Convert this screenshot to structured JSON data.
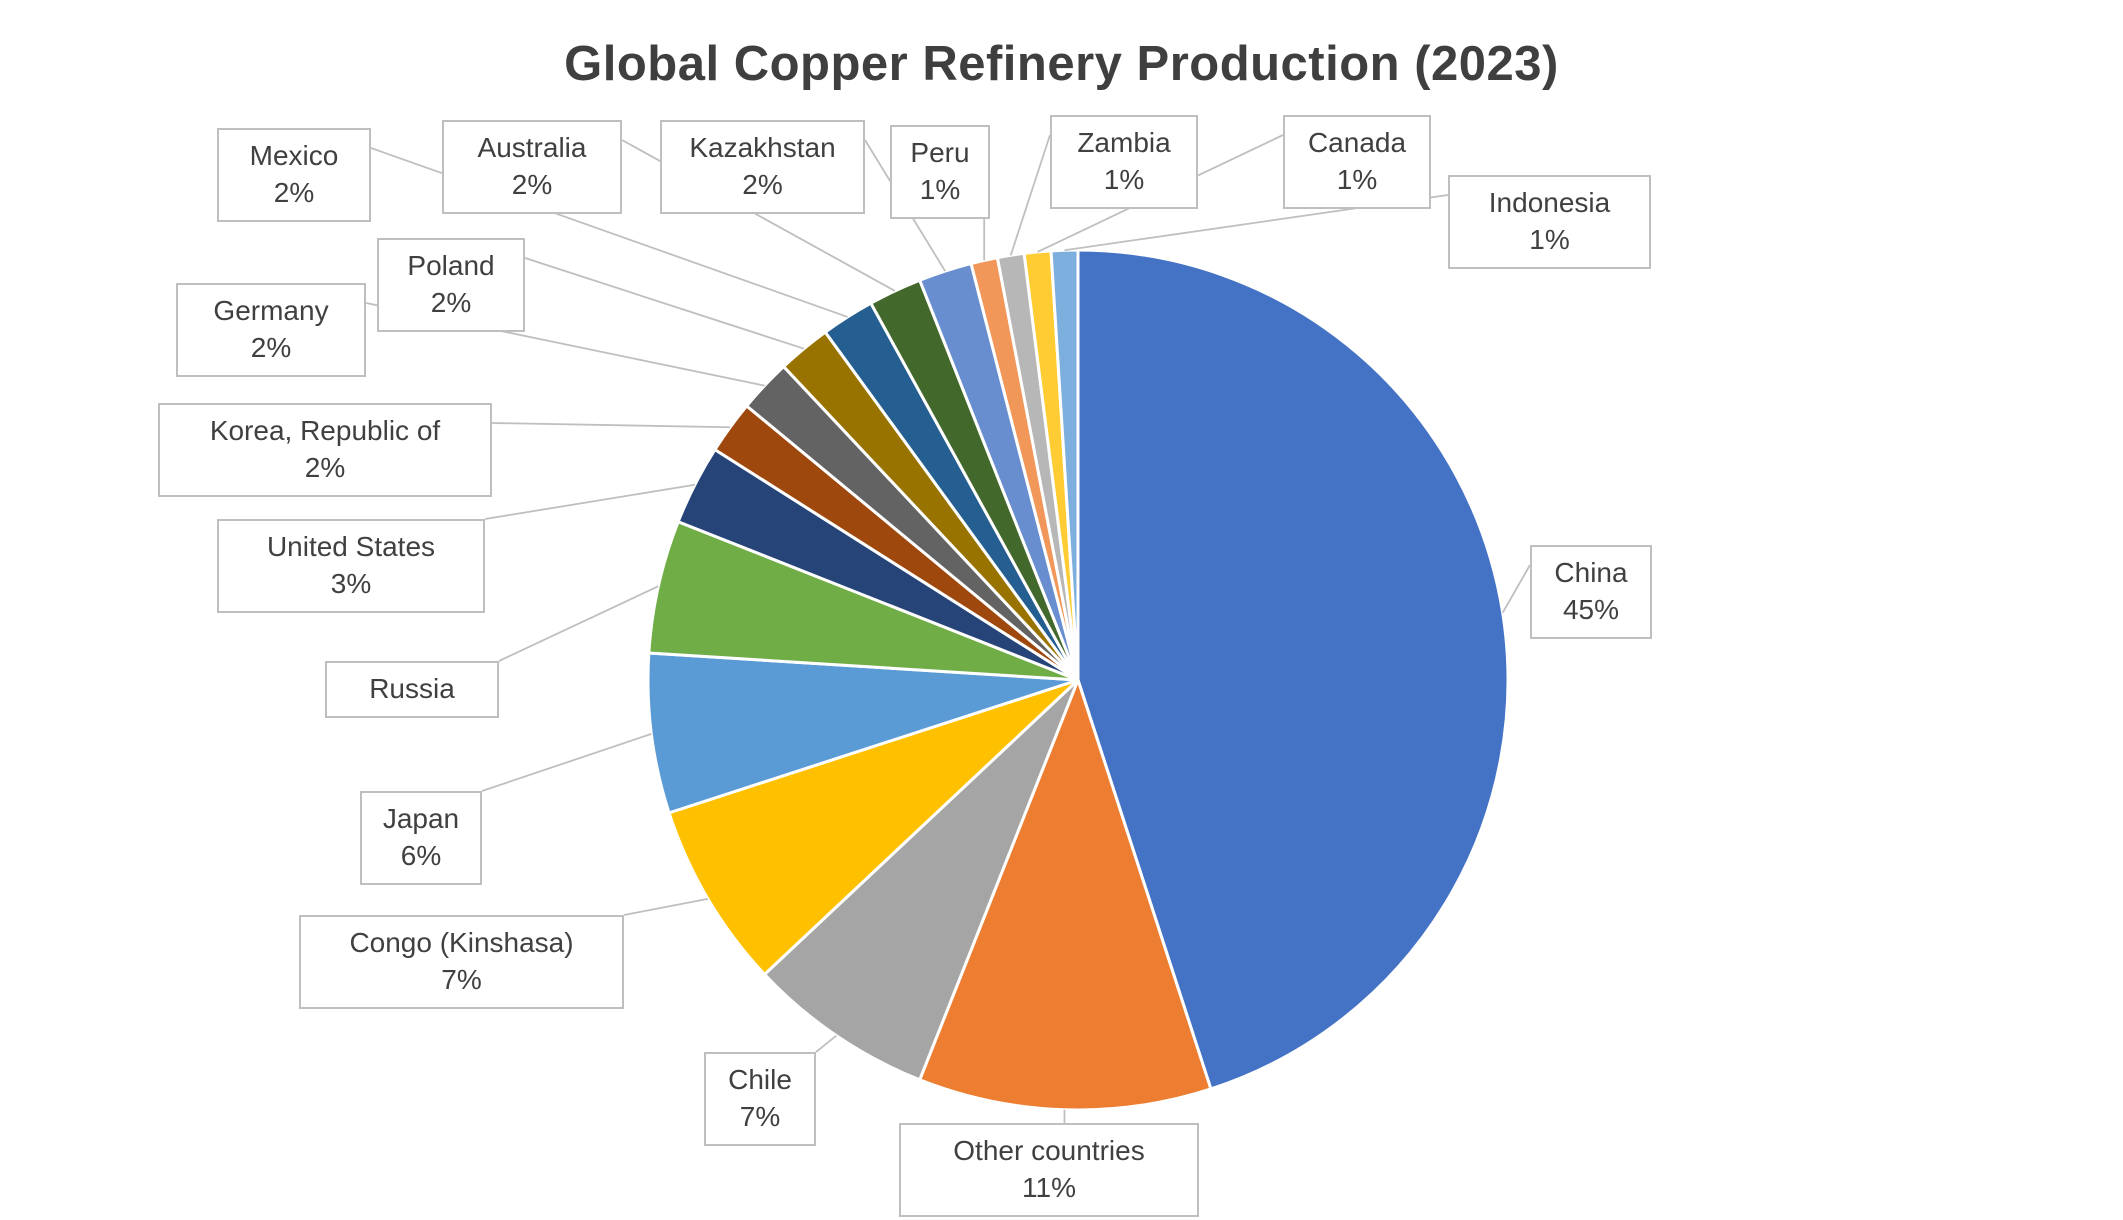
{
  "title": "Global Copper Refinery Production (2023)",
  "chart_data": {
    "type": "pie",
    "title": "Global Copper Refinery Production (2023)",
    "start_angle_deg": 0,
    "direction": "clockwise",
    "legend": "none",
    "label_style": "callout-boxes-with-leader-lines",
    "slices": [
      {
        "label": "China",
        "value": 45,
        "pct_text": "45%",
        "color": "#4472C4"
      },
      {
        "label": "Other countries",
        "value": 11,
        "pct_text": "11%",
        "color": "#ED7D31"
      },
      {
        "label": "Chile",
        "value": 7,
        "pct_text": "7%",
        "color": "#A5A5A5"
      },
      {
        "label": "Congo (Kinshasa)",
        "value": 7,
        "pct_text": "7%",
        "color": "#FFC000"
      },
      {
        "label": "Japan",
        "value": 6,
        "pct_text": "6%",
        "color": "#5B9BD5"
      },
      {
        "label": "Russia",
        "value": 5,
        "pct_text": "",
        "color": "#70AD47"
      },
      {
        "label": "United States",
        "value": 3,
        "pct_text": "3%",
        "color": "#264478"
      },
      {
        "label": "Korea, Republic of",
        "value": 2,
        "pct_text": "2%",
        "color": "#9E480E"
      },
      {
        "label": "Germany",
        "value": 2,
        "pct_text": "2%",
        "color": "#636363"
      },
      {
        "label": "Poland",
        "value": 2,
        "pct_text": "2%",
        "color": "#997300"
      },
      {
        "label": "Mexico",
        "value": 2,
        "pct_text": "2%",
        "color": "#255E91"
      },
      {
        "label": "Australia",
        "value": 2,
        "pct_text": "2%",
        "color": "#43682B"
      },
      {
        "label": "Kazakhstan",
        "value": 2,
        "pct_text": "2%",
        "color": "#698ED0"
      },
      {
        "label": "Peru",
        "value": 1,
        "pct_text": "1%",
        "color": "#F1975A"
      },
      {
        "label": "Zambia",
        "value": 1,
        "pct_text": "1%",
        "color": "#B7B7B7"
      },
      {
        "label": "Canada",
        "value": 1,
        "pct_text": "1%",
        "color": "#FFCD33"
      },
      {
        "label": "Indonesia",
        "value": 1,
        "pct_text": "1%",
        "color": "#7CAFDD"
      }
    ]
  }
}
